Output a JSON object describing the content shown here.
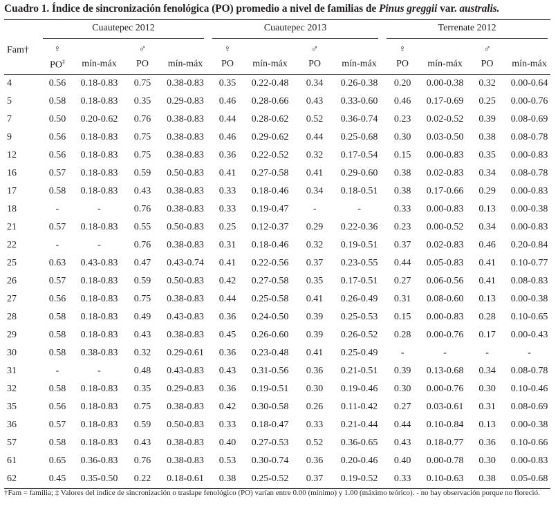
{
  "title": {
    "prefix": "Cuadro 1. Índice de sincronización fenológica (PO) promedio a nivel de familias de ",
    "species": "Pinus greggii",
    "mid": " var. ",
    "variety": "australis."
  },
  "header": {
    "fam": "Fam†",
    "groups": [
      "Cuautepec 2012",
      "Cuautepec 2013",
      "Terrenate 2012"
    ],
    "female_symbol": "♀",
    "male_symbol": "♂",
    "po_first": "PO",
    "po_first_mark": "‡",
    "po": "PO",
    "minmax": "mín-máx"
  },
  "rows": [
    [
      "4",
      "0.56",
      "0.18-0.83",
      "0.75",
      "0.38-0.83",
      "0.35",
      "0.22-0.48",
      "0.34",
      "0.26-0.38",
      "0.20",
      "0.00-0.38",
      "0.32",
      "0.00-0.64"
    ],
    [
      "5",
      "0.58",
      "0.18-0.83",
      "0.35",
      "0.29-0.83",
      "0.46",
      "0.28-0.66",
      "0.43",
      "0.33-0.60",
      "0.46",
      "0.17-0.69",
      "0.25",
      "0.00-0.76"
    ],
    [
      "7",
      "0.50",
      "0.20-0.62",
      "0.76",
      "0.38-0.83",
      "0.44",
      "0.28-0.62",
      "0.52",
      "0.36-0.74",
      "0.23",
      "0.02-0.52",
      "0.39",
      "0.08-0.69"
    ],
    [
      "9",
      "0.56",
      "0.18-0.83",
      "0.75",
      "0.38-0.83",
      "0.46",
      "0.29-0.62",
      "0.44",
      "0.25-0.68",
      "0.30",
      "0.03-0.50",
      "0.38",
      "0.08-0.78"
    ],
    [
      "12",
      "0.56",
      "0.18-0.83",
      "0.75",
      "0.38-0.83",
      "0.36",
      "0.22-0.52",
      "0.32",
      "0.17-0.54",
      "0.15",
      "0.00-0.83",
      "0.35",
      "0.00-0.83"
    ],
    [
      "16",
      "0.57",
      "0.18-0.83",
      "0.59",
      "0.50-0.83",
      "0.41",
      "0.27-0.58",
      "0.41",
      "0.29-0.60",
      "0.38",
      "0.02-0.83",
      "0.34",
      "0.08-0.78"
    ],
    [
      "17",
      "0.58",
      "0.18-0.83",
      "0.43",
      "0.38-0.83",
      "0.33",
      "0.18-0.46",
      "0.34",
      "0.18-0.51",
      "0.38",
      "0.17-0.66",
      "0.29",
      "0.00-0.83"
    ],
    [
      "18",
      "-",
      "-",
      "0.76",
      "0.38-0.83",
      "0.33",
      "0.19-0.47",
      "-",
      "-",
      "0.33",
      "0.00-0.83",
      "0.13",
      "0.00-0.38"
    ],
    [
      "21",
      "0.57",
      "0.18-0.83",
      "0.55",
      "0.50-0.83",
      "0.25",
      "0.12-0.37",
      "0.29",
      "0.22-0.36",
      "0.23",
      "0.00-0.52",
      "0.34",
      "0.00-0.83"
    ],
    [
      "22",
      "-",
      "-",
      "0.76",
      "0.38-0.83",
      "0.31",
      "0.18-0.46",
      "0.32",
      "0.19-0.51",
      "0.37",
      "0.02-0.83",
      "0.46",
      "0.20-0.84"
    ],
    [
      "25",
      "0.63",
      "0.43-0.83",
      "0.47",
      "0.43-0.74",
      "0.41",
      "0.22-0.56",
      "0.37",
      "0.23-0.55",
      "0.44",
      "0.05-0.83",
      "0.41",
      "0.10-0.77"
    ],
    [
      "26",
      "0.57",
      "0.18-0.83",
      "0.59",
      "0.50-0.83",
      "0.42",
      "0.27-0.58",
      "0.35",
      "0.17-0.51",
      "0.27",
      "0.06-0.56",
      "0.41",
      "0.08-0.83"
    ],
    [
      "27",
      "0.56",
      "0.18-0.83",
      "0.75",
      "0.38-0.83",
      "0.44",
      "0.25-0.58",
      "0.41",
      "0.26-0.49",
      "0.31",
      "0.08-0.60",
      "0.13",
      "0.00-0.38"
    ],
    [
      "28",
      "0.58",
      "0.18-0.83",
      "0.49",
      "0.43-0.83",
      "0.36",
      "0.24-0.50",
      "0.39",
      "0.25-0.53",
      "0.15",
      "0.00-0.83",
      "0.28",
      "0.10-0.65"
    ],
    [
      "29",
      "0.58",
      "0.18-0.83",
      "0.43",
      "0.38-0.83",
      "0.45",
      "0.26-0.60",
      "0.39",
      "0.26-0.52",
      "0.28",
      "0.00-0.76",
      "0.17",
      "0.00-0.43"
    ],
    [
      "30",
      "0.58",
      "0.38-0.83",
      "0.32",
      "0.29-0.61",
      "0.36",
      "0.23-0.48",
      "0.41",
      "0.25-0.49",
      "-",
      "-",
      "-",
      "-"
    ],
    [
      "31",
      "-",
      "-",
      "0.48",
      "0.43-0.83",
      "0.43",
      "0.31-0.56",
      "0.36",
      "0.21-0.51",
      "0.39",
      "0.13-0.68",
      "0.34",
      "0.08-0.78"
    ],
    [
      "32",
      "0.58",
      "0.18-0.83",
      "0.35",
      "0.29-0.83",
      "0.36",
      "0.19-0.51",
      "0.30",
      "0.19-0.46",
      "0.30",
      "0.00-0.76",
      "0.30",
      "0.10-0.46"
    ],
    [
      "35",
      "0.56",
      "0.18-0.83",
      "0.75",
      "0.38-0.83",
      "0.42",
      "0.30-0.58",
      "0.26",
      "0.11-0.42",
      "0.27",
      "0.03-0.61",
      "0.31",
      "0.08-0.69"
    ],
    [
      "36",
      "0.57",
      "0.18-0.83",
      "0.59",
      "0.50-0.83",
      "0.33",
      "0.18-0.47",
      "0.33",
      "0.21-0.44",
      "0.44",
      "0.10-0.84",
      "0.13",
      "0.00-0.38"
    ],
    [
      "57",
      "0.58",
      "0.18-0.83",
      "0.43",
      "0.38-0.83",
      "0.40",
      "0.27-0.53",
      "0.52",
      "0.36-0.65",
      "0.43",
      "0.18-0.77",
      "0.36",
      "0.10-0.66"
    ],
    [
      "61",
      "0.65",
      "0.36-0.83",
      "0.76",
      "0.38-0.83",
      "0.53",
      "0.30-0.74",
      "0.36",
      "0.20-0.46",
      "0.40",
      "0.00-0.78",
      "0.30",
      "0.00-0.83"
    ],
    [
      "62",
      "0.45",
      "0.35-0.50",
      "0.22",
      "0.18-0.61",
      "0.38",
      "0.25-0.52",
      "0.37",
      "0.19-0.52",
      "0.33",
      "0.10-0.63",
      "0.38",
      "0.05-0.68"
    ]
  ],
  "footnote": "†Fam = familia; ‡ Valores del índice de sincronización o traslape fenológico (PO) varían entre 0.00 (mínimo) y 1.00 (máximo teórico). - no hay observación porque no floreció."
}
